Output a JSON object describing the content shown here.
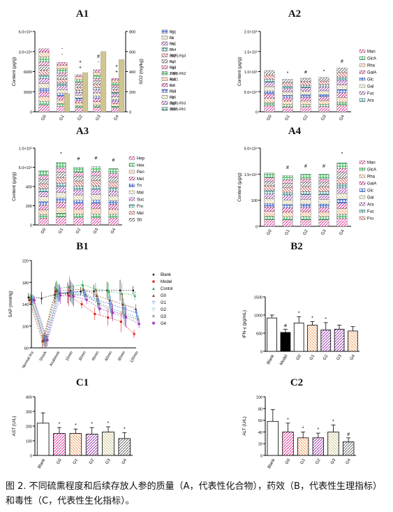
{
  "figure": {
    "panel_labels": [
      "A1",
      "A2",
      "A3",
      "A4",
      "B1",
      "B2",
      "C1",
      "C2"
    ],
    "caption": "图 2. 不同硫熏程度和后续存放人参的质量（A，代表性化合物），药效（B，代表性生理指标）和毒性（C，代表性生化指标）。"
  },
  "chart_data": [
    {
      "id": "A1",
      "type": "bar",
      "stacked": true,
      "categories": [
        "G0",
        "G1",
        "G2",
        "G3",
        "G4"
      ],
      "ylabel": "Content (μg/g)",
      "y2label": "SO2 (mg/kg)",
      "yticks": [
        "0",
        "3000",
        "6000",
        "3.0×10⁴",
        "6.0×10⁴"
      ],
      "y2ticks": [
        "0",
        "200",
        "400",
        "600",
        "800"
      ],
      "ylim": [
        0,
        60000
      ],
      "y2lim": [
        0,
        800
      ],
      "stack_totals": [
        51000,
        40000,
        30000,
        34000,
        27000
      ],
      "so2_values": [
        0,
        180,
        390,
        600,
        520
      ],
      "legend": [
        "Rg1",
        "Re",
        "Rb1",
        "Rf",
        "Rb2",
        "Rc",
        "Rg2",
        "Z-R1",
        "Ra1",
        "C-K",
        "Rb3",
        "F2",
        "Rg3",
        "20(R)-Rh1",
        "Rh1",
        "F1",
        "Rk1",
        "Rh4",
        "20(R)-Rg3",
        "Rg5",
        "Rk3",
        "20(R)-Rh2",
        "M-R1",
        "Ro",
        "Rh2",
        "Rg6",
        "20(R)-Rh3",
        "SO2"
      ],
      "annotations": [
        "-",
        "+",
        "-",
        "+",
        "-",
        "+",
        "#",
        "+"
      ]
    },
    {
      "id": "A2",
      "type": "bar",
      "stacked": true,
      "categories": [
        "G0",
        "G1",
        "G2",
        "G3",
        "G4"
      ],
      "ylabel": "Content (μg/g)",
      "yticks": [
        "0",
        "5.0×10⁴",
        "1.0×10⁵",
        "1.5×10⁵",
        "2.0×10⁵"
      ],
      "ylim": [
        0,
        200000
      ],
      "stack_totals": [
        108000,
        85000,
        88000,
        90000,
        115000
      ],
      "legend": [
        "Man",
        "GlcA",
        "Rha",
        "GalA",
        "Glc",
        "Gal",
        "Fuc",
        "Ara"
      ],
      "annotations": [
        "*",
        "#",
        "*",
        "#"
      ]
    },
    {
      "id": "A3",
      "type": "bar",
      "stacked": true,
      "categories": [
        "G0",
        "G1",
        "G2",
        "G3",
        "G4"
      ],
      "ylabel": "Content (μg/g)",
      "yticks": [
        "0",
        "200",
        "400",
        "5.0×10⁴",
        "1.0×10⁵"
      ],
      "stack_totals": [
        80000,
        92000,
        85000,
        86000,
        83000
      ],
      "legend": [
        "Hep",
        "Hex",
        "Pen",
        "Met",
        "Tri",
        "Mal",
        "Suc",
        "Fru",
        "Mel",
        "Sti"
      ],
      "annotations": [
        "*",
        "#",
        "#",
        "#"
      ]
    },
    {
      "id": "A4",
      "type": "bar",
      "stacked": true,
      "categories": [
        "G0",
        "G1",
        "G2",
        "G3",
        "G4"
      ],
      "ylabel": "Content (μg/g)",
      "yticks": [
        "0",
        "100",
        "1.5×10⁴",
        "5.0×10⁴"
      ],
      "stack_totals": [
        42000,
        40000,
        41000,
        41000,
        50000
      ],
      "legend": [
        "Man",
        "GlcA",
        "Rha",
        "GalA",
        "Glc",
        "Gal",
        "Ara",
        "Fuc",
        "Fru"
      ],
      "annotations": [
        "#",
        "#",
        "#",
        "*"
      ]
    },
    {
      "id": "B1",
      "type": "line",
      "ylabel": "SAP (mmHg)",
      "x": [
        "Normal Ary",
        "Shock",
        "Anabiosis",
        "15min",
        "30min",
        "45min",
        "60min",
        "90min",
        "120min"
      ],
      "yticks": [
        "60",
        "100",
        "140",
        "180",
        "220"
      ],
      "ylim": [
        40,
        240
      ],
      "series": [
        {
          "name": "Blank",
          "values": [
            156,
            154,
            162,
            166,
            170,
            170,
            172,
            172,
            172
          ]
        },
        {
          "name": "Model",
          "values": [
            150,
            55,
            170,
            160,
            140,
            118,
            110,
            100,
            72
          ]
        },
        {
          "name": "Contol",
          "values": [
            155,
            57,
            175,
            180,
            185,
            175,
            170,
            165,
            160
          ]
        },
        {
          "name": "G0",
          "values": [
            152,
            58,
            172,
            172,
            175,
            160,
            150,
            140,
            130
          ]
        },
        {
          "name": "G1",
          "values": [
            150,
            56,
            165,
            168,
            165,
            150,
            140,
            130,
            120
          ]
        },
        {
          "name": "G2",
          "values": [
            153,
            55,
            168,
            165,
            160,
            145,
            130,
            120,
            110
          ]
        },
        {
          "name": "G3",
          "values": [
            151,
            57,
            166,
            162,
            160,
            140,
            125,
            115,
            105
          ]
        },
        {
          "name": "G4",
          "values": [
            149,
            58,
            160,
            158,
            150,
            130,
            120,
            110,
            95
          ]
        }
      ]
    },
    {
      "id": "B2",
      "type": "bar",
      "categories": [
        "Blank",
        "Model",
        "G0",
        "G1",
        "G2",
        "G3",
        "G4"
      ],
      "ylabel": "IFN-γ (pg/mL)",
      "yticks": [
        "0",
        "500",
        "1000",
        "1500"
      ],
      "ylim": [
        0,
        1500
      ],
      "values": [
        920,
        520,
        780,
        720,
        590,
        610,
        560
      ],
      "errors": [
        80,
        90,
        170,
        100,
        200,
        110,
        120
      ],
      "annotations": [
        "#",
        "*",
        "*",
        "*"
      ]
    },
    {
      "id": "C1",
      "type": "bar",
      "categories": [
        "Blank",
        "G0",
        "G1",
        "G2",
        "G3",
        "G4"
      ],
      "ylabel": "AST (U/L)",
      "yticks": [
        "0",
        "100",
        "200",
        "300",
        "400"
      ],
      "ylim": [
        0,
        400
      ],
      "values": [
        220,
        150,
        150,
        145,
        160,
        115
      ],
      "errors": [
        70,
        40,
        30,
        45,
        35,
        40
      ],
      "annotations": [
        "*",
        "*",
        "*",
        "*",
        "*"
      ]
    },
    {
      "id": "C2",
      "type": "bar",
      "categories": [
        "Blank",
        "G0",
        "G1",
        "G2",
        "G3",
        "G4"
      ],
      "ylabel": "ALT (U/L)",
      "yticks": [
        "0",
        "20",
        "40",
        "60",
        "80",
        "100"
      ],
      "ylim": [
        0,
        100
      ],
      "values": [
        58,
        40,
        30,
        30,
        40,
        23
      ],
      "errors": [
        20,
        15,
        10,
        8,
        12,
        7
      ],
      "annotations": [
        "*",
        "*",
        "*",
        "*",
        "#"
      ]
    }
  ],
  "colors": {
    "pink": "#e4369a",
    "magenta": "#c71585",
    "green": "#21a844",
    "orange": "#f0a060",
    "khaki": "#cfc58f",
    "blue": "#1a52d8",
    "red": "#e01818"
  }
}
